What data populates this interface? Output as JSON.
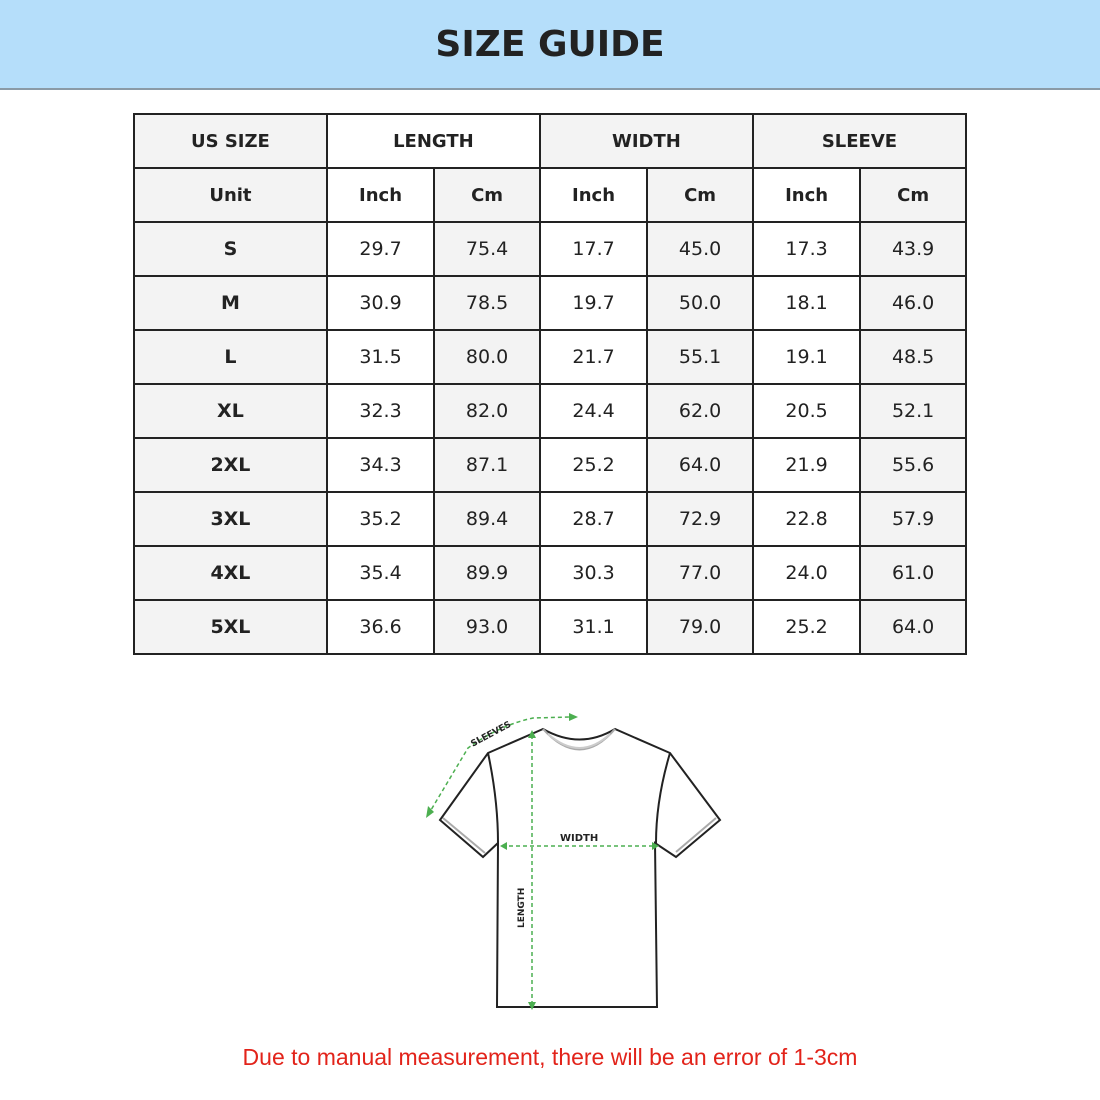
{
  "title": "SIZE GUIDE",
  "table": {
    "group_headers": [
      "US SIZE",
      "LENGTH",
      "WIDTH",
      "SLEEVE"
    ],
    "unit_row": [
      "Unit",
      "Inch",
      "Cm",
      "Inch",
      "Cm",
      "Inch",
      "Cm"
    ],
    "rows": [
      [
        "S",
        "29.7",
        "75.4",
        "17.7",
        "45.0",
        "17.3",
        "43.9"
      ],
      [
        "M",
        "30.9",
        "78.5",
        "19.7",
        "50.0",
        "18.1",
        "46.0"
      ],
      [
        "L",
        "31.5",
        "80.0",
        "21.7",
        "55.1",
        "19.1",
        "48.5"
      ],
      [
        "XL",
        "32.3",
        "82.0",
        "24.4",
        "62.0",
        "20.5",
        "52.1"
      ],
      [
        "2XL",
        "34.3",
        "87.1",
        "25.2",
        "64.0",
        "21.9",
        "55.6"
      ],
      [
        "3XL",
        "35.2",
        "89.4",
        "28.7",
        "72.9",
        "22.8",
        "57.9"
      ],
      [
        "4XL",
        "35.4",
        "89.9",
        "30.3",
        "77.0",
        "24.0",
        "61.0"
      ],
      [
        "5XL",
        "36.6",
        "93.0",
        "31.1",
        "79.0",
        "25.2",
        "64.0"
      ]
    ]
  },
  "diagram": {
    "sleeves_label": "SLEEVES",
    "width_label": "WIDTH",
    "length_label": "LENGTH",
    "measure_color": "#4caf50"
  },
  "note": "Due to manual measurement, there will be an error of 1-3cm",
  "colors": {
    "banner": "#b5defa",
    "note": "#e2231a"
  }
}
